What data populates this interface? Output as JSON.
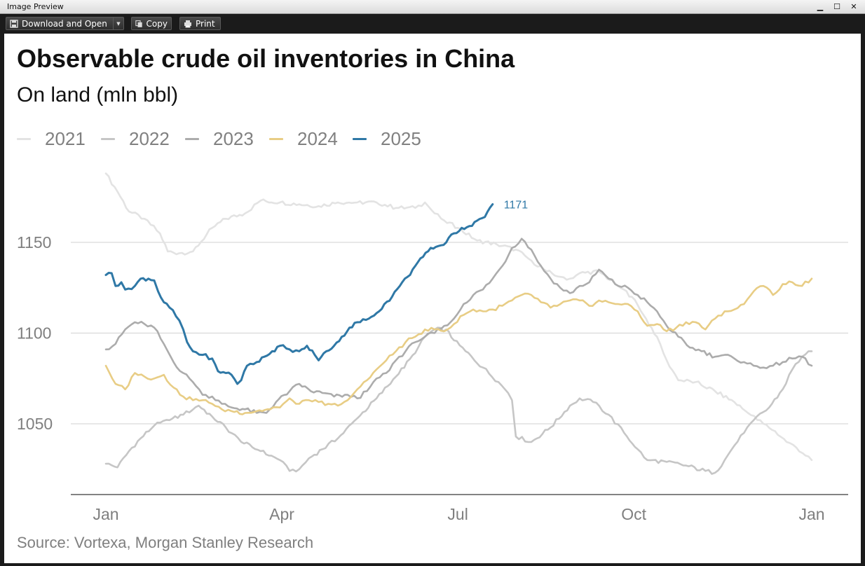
{
  "window": {
    "title": "Image Preview",
    "minimize_glyph": "▁",
    "maximize_glyph": "☐",
    "close_glyph": "✕"
  },
  "toolbar": {
    "download_label": "Download and Open",
    "copy_label": "Copy",
    "print_label": "Print"
  },
  "chart_data": {
    "type": "line",
    "title": "Observable crude oil inventories in China",
    "subtitle": "On land (mln bbl)",
    "source": "Source: Vortexa, Morgan Stanley Research",
    "x_ticks": [
      "Jan",
      "Apr",
      "Jul",
      "Oct",
      "Jan"
    ],
    "x_tick_pos": [
      0,
      91,
      182,
      273,
      365
    ],
    "x_range": [
      0,
      365
    ],
    "y_ticks": [
      "1050",
      "1100",
      "1150"
    ],
    "y_tick_vals": [
      1050,
      1100,
      1150
    ],
    "y_range": [
      1011,
      1192
    ],
    "grid": "horizontal",
    "legend_position": "top-left",
    "end_label": "1171",
    "series": [
      {
        "name": "2021",
        "color": "#e3e3e3",
        "points": [
          [
            0,
            1188
          ],
          [
            6,
            1178
          ],
          [
            12,
            1167
          ],
          [
            20,
            1163
          ],
          [
            28,
            1155
          ],
          [
            32,
            1145
          ],
          [
            38,
            1144
          ],
          [
            45,
            1145
          ],
          [
            55,
            1158
          ],
          [
            62,
            1163
          ],
          [
            72,
            1166
          ],
          [
            80,
            1173
          ],
          [
            90,
            1172
          ],
          [
            100,
            1171
          ],
          [
            110,
            1170
          ],
          [
            120,
            1172
          ],
          [
            130,
            1172
          ],
          [
            140,
            1172
          ],
          [
            150,
            1169
          ],
          [
            160,
            1169
          ],
          [
            165,
            1172
          ],
          [
            170,
            1166
          ],
          [
            175,
            1162
          ],
          [
            182,
            1158
          ],
          [
            192,
            1151
          ],
          [
            202,
            1149
          ],
          [
            212,
            1146
          ],
          [
            220,
            1140
          ],
          [
            228,
            1134
          ],
          [
            235,
            1131
          ],
          [
            240,
            1130
          ],
          [
            245,
            1133
          ],
          [
            255,
            1134
          ],
          [
            265,
            1126
          ],
          [
            272,
            1120
          ],
          [
            278,
            1110
          ],
          [
            285,
            1098
          ],
          [
            290,
            1085
          ],
          [
            296,
            1074
          ],
          [
            305,
            1073
          ],
          [
            315,
            1068
          ],
          [
            325,
            1062
          ],
          [
            332,
            1056
          ],
          [
            340,
            1050
          ],
          [
            346,
            1046
          ],
          [
            352,
            1040
          ],
          [
            357,
            1037
          ],
          [
            365,
            1030
          ]
        ]
      },
      {
        "name": "2022",
        "color": "#c6c6c6",
        "points": [
          [
            0,
            1028
          ],
          [
            6,
            1026
          ],
          [
            12,
            1035
          ],
          [
            18,
            1042
          ],
          [
            25,
            1049
          ],
          [
            33,
            1052
          ],
          [
            40,
            1055
          ],
          [
            48,
            1060
          ],
          [
            55,
            1054
          ],
          [
            62,
            1048
          ],
          [
            70,
            1040
          ],
          [
            80,
            1035
          ],
          [
            90,
            1030
          ],
          [
            95,
            1024
          ],
          [
            100,
            1025
          ],
          [
            105,
            1031
          ],
          [
            112,
            1036
          ],
          [
            120,
            1042
          ],
          [
            130,
            1053
          ],
          [
            140,
            1064
          ],
          [
            150,
            1076
          ],
          [
            160,
            1089
          ],
          [
            165,
            1098
          ],
          [
            170,
            1102
          ],
          [
            176,
            1102
          ],
          [
            180,
            1096
          ],
          [
            186,
            1090
          ],
          [
            195,
            1081
          ],
          [
            203,
            1073
          ],
          [
            208,
            1067
          ],
          [
            210,
            1063
          ],
          [
            212,
            1043
          ],
          [
            220,
            1040
          ],
          [
            230,
            1048
          ],
          [
            240,
            1060
          ],
          [
            245,
            1064
          ],
          [
            252,
            1062
          ],
          [
            260,
            1055
          ],
          [
            268,
            1045
          ],
          [
            275,
            1036
          ],
          [
            280,
            1030
          ],
          [
            290,
            1029
          ],
          [
            300,
            1027
          ],
          [
            310,
            1024
          ],
          [
            315,
            1023
          ],
          [
            320,
            1030
          ],
          [
            325,
            1038
          ],
          [
            330,
            1045
          ],
          [
            335,
            1052
          ],
          [
            343,
            1059
          ],
          [
            350,
            1069
          ],
          [
            355,
            1080
          ],
          [
            360,
            1087
          ],
          [
            365,
            1090
          ]
        ]
      },
      {
        "name": "2023",
        "color": "#acacac",
        "points": [
          [
            0,
            1091
          ],
          [
            5,
            1094
          ],
          [
            10,
            1102
          ],
          [
            15,
            1106
          ],
          [
            20,
            1105
          ],
          [
            25,
            1103
          ],
          [
            30,
            1094
          ],
          [
            35,
            1084
          ],
          [
            40,
            1078
          ],
          [
            45,
            1073
          ],
          [
            50,
            1066
          ],
          [
            55,
            1065
          ],
          [
            60,
            1061
          ],
          [
            65,
            1059
          ],
          [
            72,
            1058
          ],
          [
            78,
            1056
          ],
          [
            83,
            1056
          ],
          [
            88,
            1062
          ],
          [
            95,
            1068
          ],
          [
            100,
            1072
          ],
          [
            106,
            1068
          ],
          [
            112,
            1067
          ],
          [
            118,
            1065
          ],
          [
            125,
            1066
          ],
          [
            130,
            1064
          ],
          [
            135,
            1068
          ],
          [
            140,
            1075
          ],
          [
            145,
            1078
          ],
          [
            150,
            1085
          ],
          [
            155,
            1090
          ],
          [
            160,
            1095
          ],
          [
            165,
            1098
          ],
          [
            170,
            1100
          ],
          [
            175,
            1104
          ],
          [
            180,
            1108
          ],
          [
            185,
            1116
          ],
          [
            190,
            1121
          ],
          [
            195,
            1124
          ],
          [
            200,
            1130
          ],
          [
            205,
            1137
          ],
          [
            210,
            1147
          ],
          [
            215,
            1152
          ],
          [
            220,
            1146
          ],
          [
            225,
            1137
          ],
          [
            230,
            1130
          ],
          [
            235,
            1125
          ],
          [
            240,
            1122
          ],
          [
            245,
            1126
          ],
          [
            250,
            1128
          ],
          [
            255,
            1135
          ],
          [
            260,
            1130
          ],
          [
            265,
            1126
          ],
          [
            270,
            1125
          ],
          [
            275,
            1121
          ],
          [
            280,
            1117
          ],
          [
            285,
            1112
          ],
          [
            290,
            1104
          ],
          [
            296,
            1098
          ],
          [
            302,
            1092
          ],
          [
            308,
            1090
          ],
          [
            315,
            1087
          ],
          [
            320,
            1088
          ],
          [
            325,
            1086
          ],
          [
            330,
            1084
          ],
          [
            335,
            1082
          ],
          [
            340,
            1081
          ],
          [
            345,
            1082
          ],
          [
            350,
            1084
          ],
          [
            355,
            1086
          ],
          [
            360,
            1087
          ],
          [
            365,
            1082
          ]
        ]
      },
      {
        "name": "2024",
        "color": "#e8cd85",
        "points": [
          [
            0,
            1082
          ],
          [
            5,
            1072
          ],
          [
            10,
            1069
          ],
          [
            15,
            1078
          ],
          [
            20,
            1076
          ],
          [
            25,
            1075
          ],
          [
            30,
            1077
          ],
          [
            35,
            1070
          ],
          [
            40,
            1065
          ],
          [
            45,
            1063
          ],
          [
            50,
            1063
          ],
          [
            55,
            1061
          ],
          [
            60,
            1058
          ],
          [
            65,
            1057
          ],
          [
            72,
            1056
          ],
          [
            78,
            1057
          ],
          [
            85,
            1058
          ],
          [
            90,
            1059
          ],
          [
            95,
            1064
          ],
          [
            100,
            1061
          ],
          [
            105,
            1063
          ],
          [
            110,
            1062
          ],
          [
            115,
            1061
          ],
          [
            120,
            1060
          ],
          [
            125,
            1063
          ],
          [
            130,
            1069
          ],
          [
            135,
            1074
          ],
          [
            140,
            1080
          ],
          [
            145,
            1085
          ],
          [
            150,
            1090
          ],
          [
            155,
            1095
          ],
          [
            160,
            1098
          ],
          [
            165,
            1102
          ],
          [
            170,
            1102
          ],
          [
            175,
            1101
          ],
          [
            180,
            1105
          ],
          [
            185,
            1110
          ],
          [
            190,
            1113
          ],
          [
            195,
            1112
          ],
          [
            200,
            1113
          ],
          [
            205,
            1115
          ],
          [
            210,
            1118
          ],
          [
            215,
            1121
          ],
          [
            220,
            1121
          ],
          [
            225,
            1117
          ],
          [
            230,
            1114
          ],
          [
            235,
            1116
          ],
          [
            240,
            1118
          ],
          [
            245,
            1118
          ],
          [
            250,
            1115
          ],
          [
            255,
            1118
          ],
          [
            260,
            1117
          ],
          [
            265,
            1116
          ],
          [
            270,
            1116
          ],
          [
            275,
            1112
          ],
          [
            280,
            1104
          ],
          [
            285,
            1105
          ],
          [
            290,
            1101
          ],
          [
            295,
            1103
          ],
          [
            300,
            1106
          ],
          [
            305,
            1106
          ],
          [
            310,
            1102
          ],
          [
            315,
            1108
          ],
          [
            320,
            1112
          ],
          [
            325,
            1113
          ],
          [
            330,
            1116
          ],
          [
            335,
            1123
          ],
          [
            340,
            1126
          ],
          [
            345,
            1121
          ],
          [
            350,
            1127
          ],
          [
            355,
            1128
          ],
          [
            360,
            1126
          ],
          [
            365,
            1130
          ]
        ]
      },
      {
        "name": "2025",
        "color": "#2f78a6",
        "points": [
          [
            0,
            1132
          ],
          [
            3,
            1133
          ],
          [
            5,
            1126
          ],
          [
            8,
            1128
          ],
          [
            10,
            1124
          ],
          [
            15,
            1126
          ],
          [
            18,
            1130
          ],
          [
            22,
            1130
          ],
          [
            25,
            1129
          ],
          [
            27,
            1123
          ],
          [
            30,
            1117
          ],
          [
            33,
            1114
          ],
          [
            38,
            1107
          ],
          [
            40,
            1102
          ],
          [
            42,
            1095
          ],
          [
            45,
            1090
          ],
          [
            50,
            1088
          ],
          [
            55,
            1086
          ],
          [
            58,
            1079
          ],
          [
            62,
            1078
          ],
          [
            65,
            1077
          ],
          [
            68,
            1072
          ],
          [
            70,
            1074
          ],
          [
            73,
            1082
          ],
          [
            78,
            1084
          ],
          [
            82,
            1087
          ],
          [
            86,
            1090
          ],
          [
            90,
            1093
          ],
          [
            95,
            1091
          ],
          [
            100,
            1090
          ],
          [
            104,
            1093
          ],
          [
            108,
            1088
          ],
          [
            110,
            1085
          ],
          [
            114,
            1090
          ],
          [
            118,
            1093
          ],
          [
            122,
            1098
          ],
          [
            126,
            1103
          ],
          [
            130,
            1106
          ],
          [
            136,
            1108
          ],
          [
            140,
            1111
          ],
          [
            144,
            1116
          ],
          [
            148,
            1120
          ],
          [
            152,
            1126
          ],
          [
            156,
            1131
          ],
          [
            160,
            1137
          ],
          [
            164,
            1142
          ],
          [
            168,
            1147
          ],
          [
            172,
            1148
          ],
          [
            176,
            1150
          ],
          [
            180,
            1155
          ],
          [
            184,
            1158
          ],
          [
            188,
            1159
          ],
          [
            192,
            1162
          ],
          [
            196,
            1164
          ],
          [
            200,
            1171
          ]
        ]
      }
    ]
  }
}
